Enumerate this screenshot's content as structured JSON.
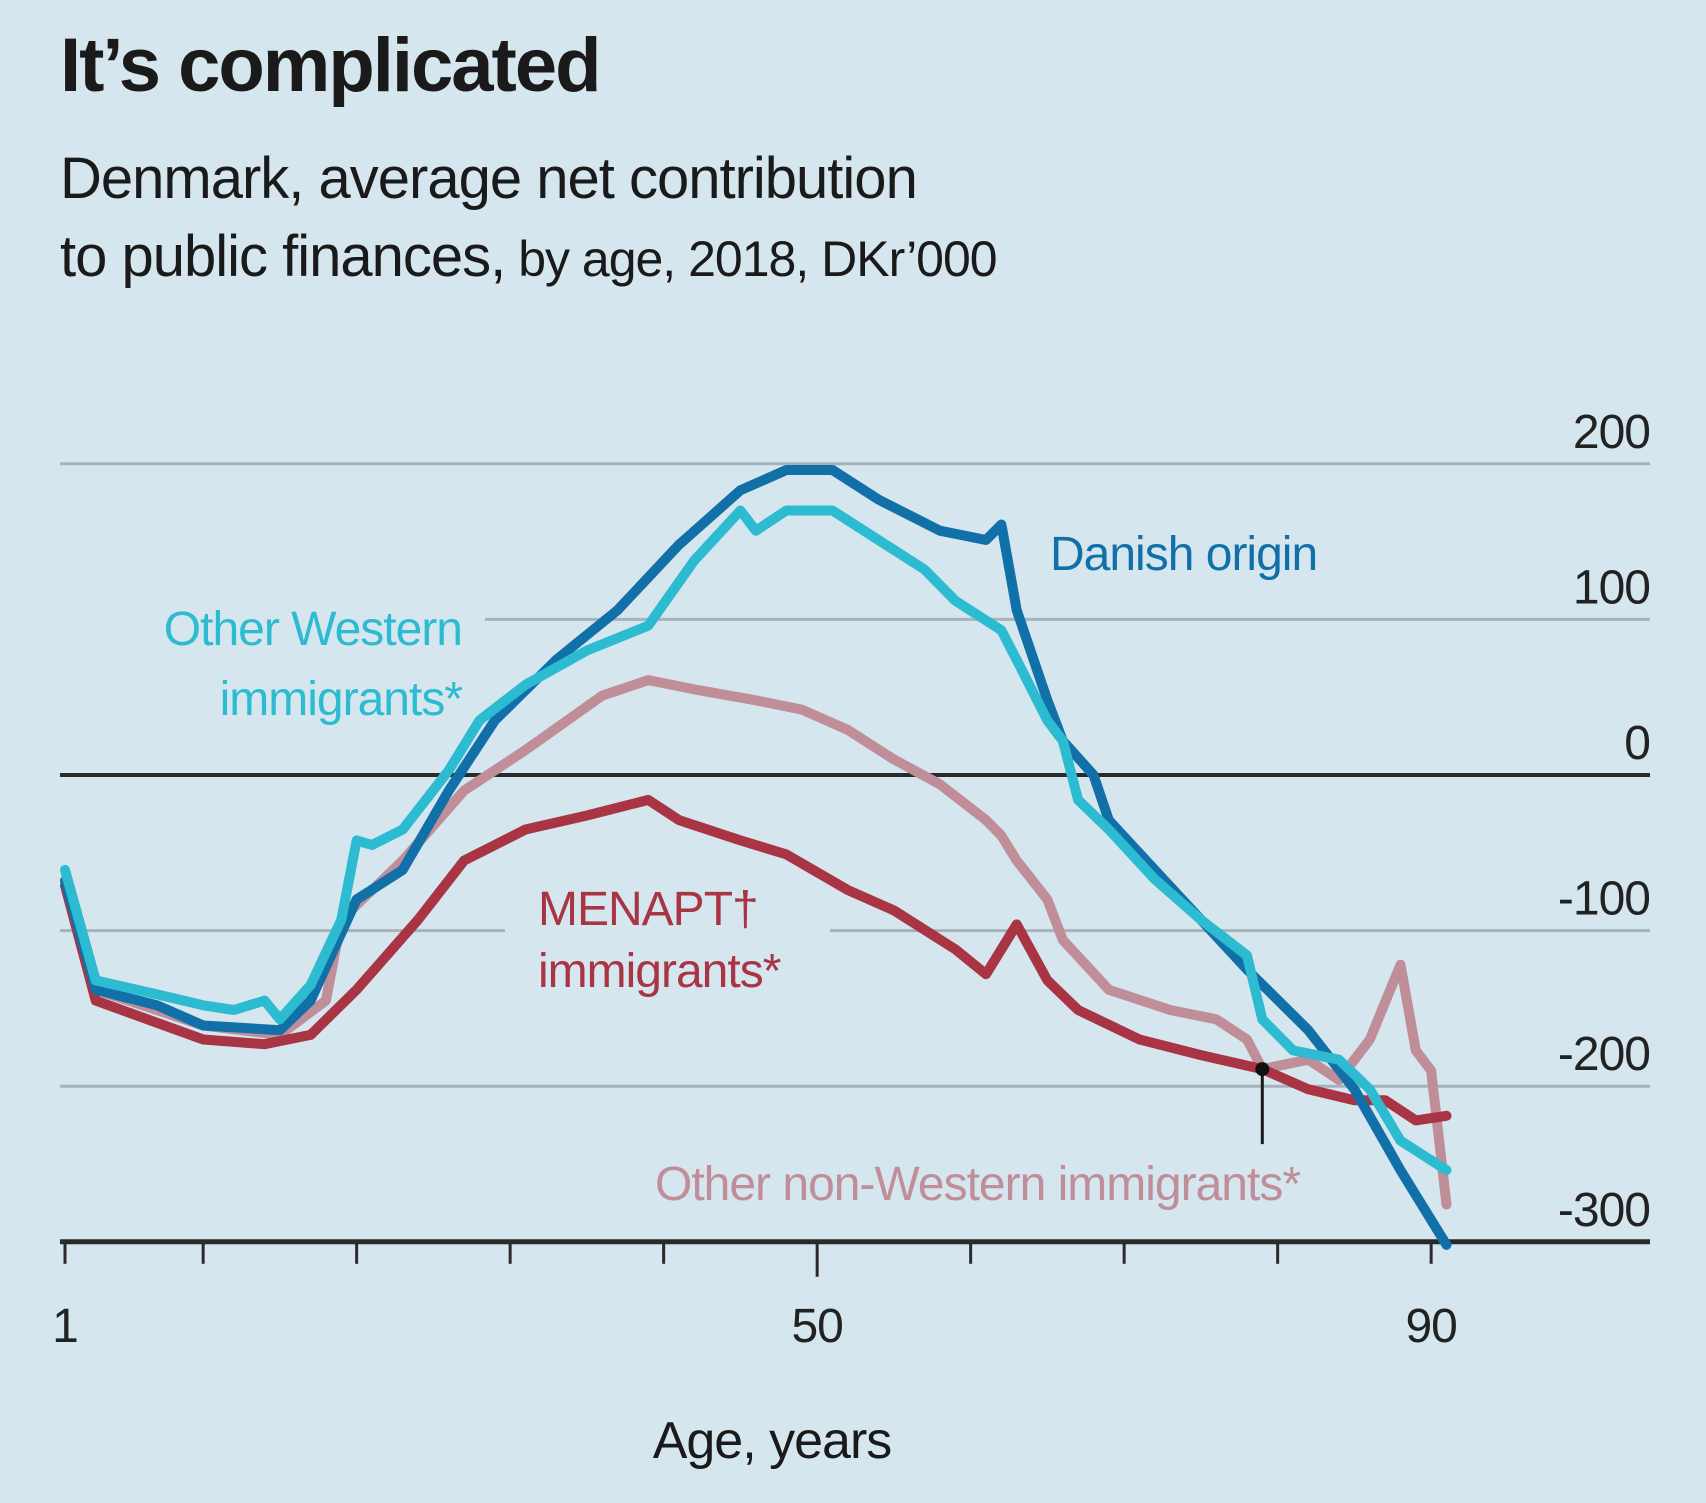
{
  "chart_data": {
    "type": "line",
    "title": "It’s complicated",
    "subtitle_main": "Denmark, average net contribution to public finances,",
    "subtitle_line1": "Denmark, average net contribution",
    "subtitle_line2": "to public finances,",
    "subtitle_unit": " by age, 2018, DKr’000",
    "xlabel": "Age, years",
    "ylabel": "",
    "xlim": [
      1,
      97
    ],
    "ylim": [
      -300,
      200
    ],
    "yticks": [
      200,
      100,
      0,
      -100,
      -200,
      -300
    ],
    "ytick_labels": [
      "200",
      "100",
      "0",
      "-100",
      "-200",
      "-300"
    ],
    "xticks": [
      1,
      10,
      20,
      30,
      40,
      50,
      60,
      70,
      80,
      90
    ],
    "xtick_labels": [
      {
        "value": 1,
        "label": "1"
      },
      {
        "value": 50,
        "label": "50"
      },
      {
        "value": 90,
        "label": "90"
      }
    ],
    "grid": true,
    "legend": "direct-labels",
    "annotation": {
      "age": 79,
      "value": -189,
      "note": "marker linking Other non-Western immigrants label"
    },
    "series": [
      {
        "name": "Danish origin",
        "label_lines": [
          "Danish origin"
        ],
        "color": "#1170a8",
        "x": [
          1,
          3,
          7,
          10,
          15,
          17,
          20,
          23,
          26,
          29,
          33,
          37,
          41,
          45,
          48,
          51,
          54,
          58,
          61,
          62,
          63,
          65,
          66,
          68,
          69,
          72,
          75,
          78,
          82,
          85,
          88,
          91
        ],
        "y": [
          -68,
          -138,
          -148,
          -161,
          -164,
          -145,
          -80,
          -61,
          -10,
          35,
          74,
          106,
          148,
          183,
          196,
          196,
          177,
          157,
          151,
          161,
          106,
          48,
          22,
          0,
          -29,
          -61,
          -93,
          -125,
          -164,
          -202,
          -254,
          -302
        ]
      },
      {
        "name": "Other Western immigrants*",
        "label_lines": [
          "Other Western",
          "immigrants*"
        ],
        "color": "#2dbbd2",
        "x": [
          1,
          3,
          7,
          10,
          12,
          14,
          15,
          17,
          19,
          20,
          21,
          23,
          26,
          28,
          31,
          35,
          39,
          42,
          45,
          46,
          48,
          51,
          54,
          57,
          59,
          62,
          63,
          65,
          66,
          67,
          69,
          72,
          75,
          78,
          79,
          81,
          84,
          86,
          88,
          91
        ],
        "y": [
          -61,
          -132,
          -141,
          -148,
          -151,
          -145,
          -157,
          -135,
          -93,
          -42,
          -45,
          -35,
          3,
          35,
          58,
          80,
          96,
          138,
          170,
          157,
          170,
          170,
          151,
          132,
          112,
          93,
          74,
          35,
          22,
          -16,
          -35,
          -67,
          -93,
          -116,
          -157,
          -177,
          -183,
          -202,
          -235,
          -254
        ]
      },
      {
        "name": "MENAPT† immigrants*",
        "label_lines": [
          "MENAPT†",
          "immigrants*"
        ],
        "color": "#a83444",
        "x": [
          1,
          3,
          10,
          14,
          17,
          20,
          24,
          27,
          31,
          35,
          39,
          41,
          45,
          48,
          52,
          55,
          59,
          61,
          63,
          65,
          67,
          71,
          75,
          79,
          82,
          85,
          87,
          89,
          91
        ],
        "y": [
          -71,
          -145,
          -170,
          -173,
          -167,
          -138,
          -93,
          -55,
          -35,
          -26,
          -16,
          -29,
          -42,
          -51,
          -74,
          -87,
          -112,
          -128,
          -96,
          -132,
          -151,
          -170,
          -180,
          -189,
          -202,
          -209,
          -209,
          -222,
          -219
        ]
      },
      {
        "name": "Other non-Western immigrants*",
        "label_lines": [
          "Other non-Western immigrants*"
        ],
        "color": "#bf8e99",
        "x": [
          1,
          3,
          10,
          15,
          18,
          19,
          23,
          27,
          31,
          36,
          39,
          42,
          46,
          49,
          52,
          55,
          58,
          61,
          62,
          63,
          65,
          66,
          69,
          73,
          76,
          78,
          79,
          82,
          84,
          85,
          86,
          88,
          89,
          90,
          91
        ],
        "y": [
          -68,
          -138,
          -161,
          -167,
          -145,
          -93,
          -55,
          -10,
          16,
          51,
          61,
          55,
          48,
          42,
          29,
          10,
          -6,
          -29,
          -39,
          -55,
          -80,
          -106,
          -138,
          -151,
          -157,
          -170,
          -189,
          -183,
          -196,
          -183,
          -170,
          -122,
          -177,
          -190,
          -276
        ]
      }
    ]
  }
}
